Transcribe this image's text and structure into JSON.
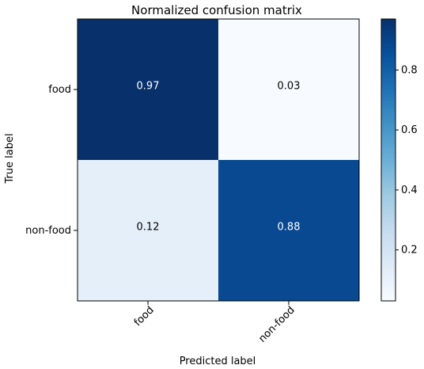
{
  "chart_data": {
    "type": "heatmap",
    "title": "Normalized confusion matrix",
    "xlabel": "Predicted label",
    "ylabel": "True label",
    "x_categories": [
      "food",
      "non-food"
    ],
    "y_categories": [
      "food",
      "non-food"
    ],
    "values": [
      [
        0.97,
        0.03
      ],
      [
        0.12,
        0.88
      ]
    ],
    "cell_labels": [
      [
        "0.97",
        "0.03"
      ],
      [
        "0.12",
        "0.88"
      ]
    ],
    "colormap": "Blues",
    "colorbar": {
      "range": [
        0.03,
        0.97
      ],
      "ticks": [
        0.2,
        0.4,
        0.6,
        0.8
      ],
      "tick_labels": [
        "0.2",
        "0.4",
        "0.6",
        "0.8"
      ]
    },
    "grid": false
  }
}
